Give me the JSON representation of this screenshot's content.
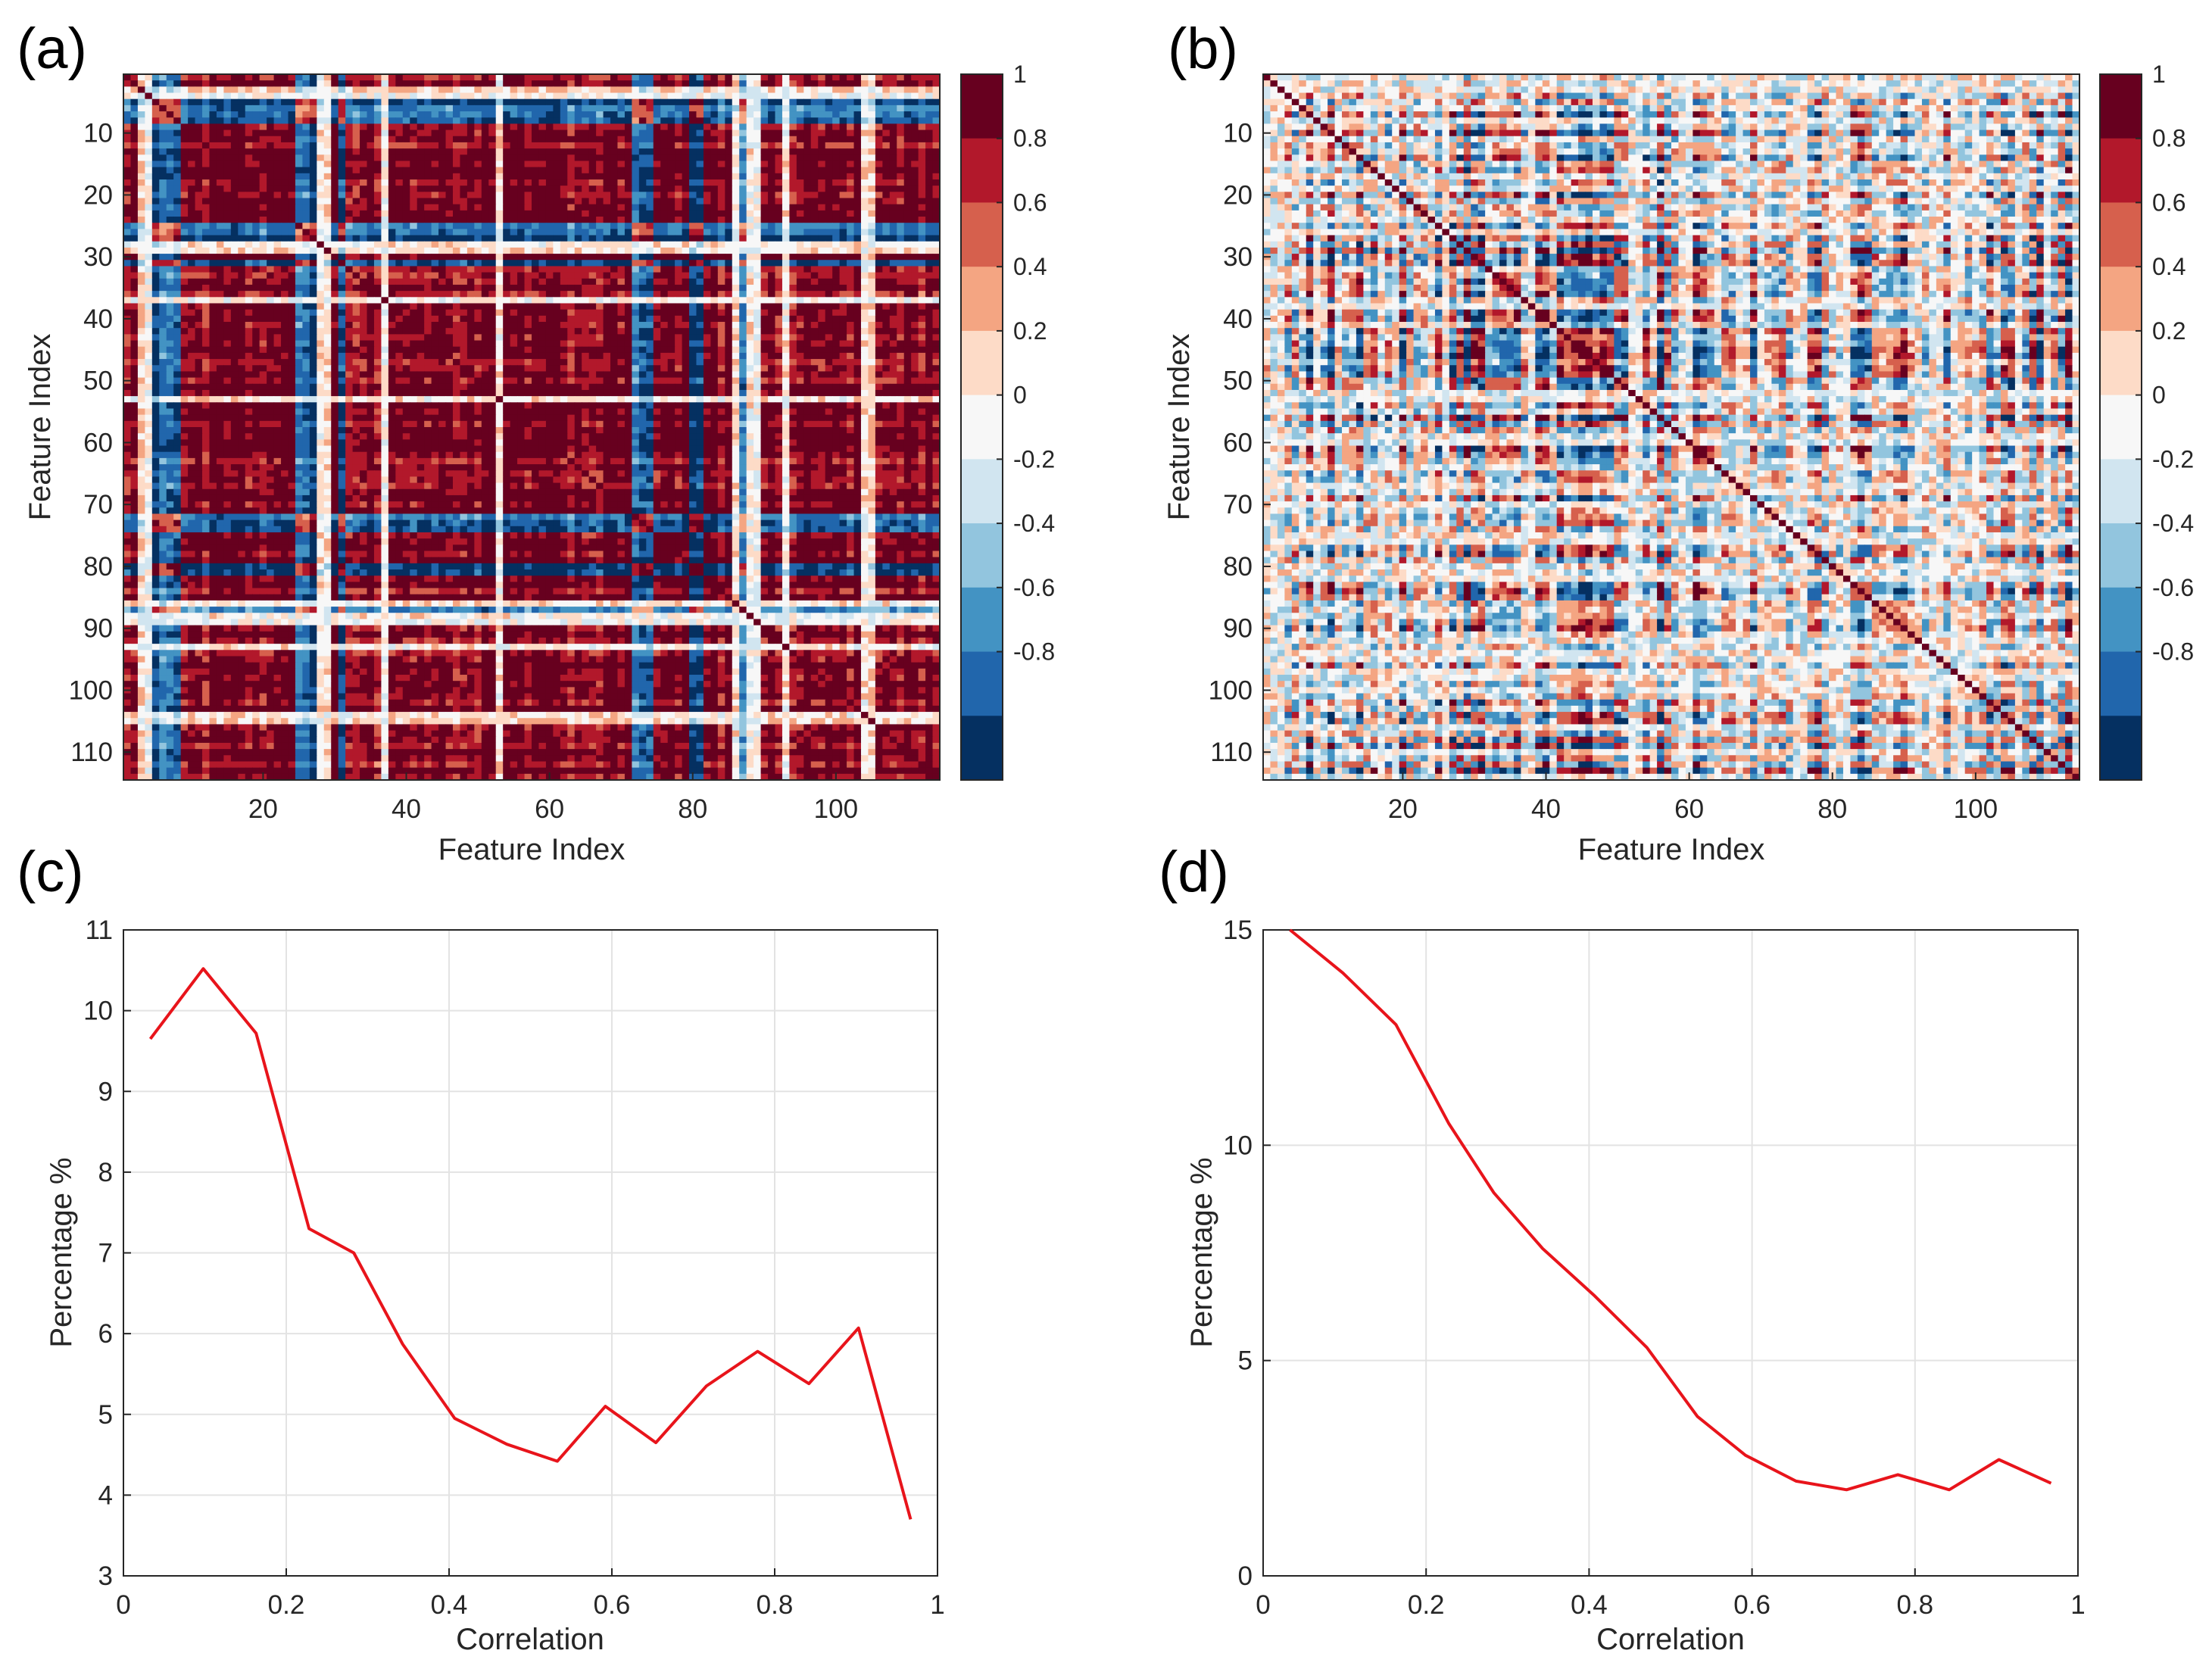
{
  "colors": {
    "line": "#e8141b",
    "grid": "#e3e3e3",
    "axis": "#262626",
    "colormap": [
      "#053061",
      "#2166ac",
      "#4393c3",
      "#92c5de",
      "#d1e5f0",
      "#f7f7f7",
      "#fddbc7",
      "#f4a582",
      "#d6604d",
      "#b2182b",
      "#67001f"
    ]
  },
  "chart_data": [
    {
      "id": "a",
      "panel_label": "(a)",
      "type": "heatmap",
      "title": "",
      "xlabel": "Feature Index",
      "ylabel": "Feature Index",
      "size": 114,
      "xticks": [
        "20",
        "40",
        "60",
        "80",
        "100"
      ],
      "yticks": [
        "10",
        "20",
        "30",
        "40",
        "50",
        "60",
        "70",
        "80",
        "90",
        "100",
        "110"
      ],
      "colorbar": {
        "range": [
          -1,
          1
        ],
        "ticks": [
          "1",
          "0.8",
          "0.6",
          "0.4",
          "0.2",
          "0",
          "-0.2",
          "-0.4",
          "-0.6",
          "-0.8"
        ]
      },
      "description_pattern": "strongly positively correlated features (mostly red) with blue bands near features 5-8, 24-26, 71-73, 80"
    },
    {
      "id": "b",
      "panel_label": "(b)",
      "type": "heatmap",
      "title": "",
      "xlabel": "Feature Index",
      "ylabel": "Feature Index",
      "size": 114,
      "xticks": [
        "20",
        "40",
        "60",
        "80",
        "100"
      ],
      "yticks": [
        "10",
        "20",
        "30",
        "40",
        "50",
        "60",
        "70",
        "80",
        "90",
        "100",
        "110"
      ],
      "colorbar": {
        "range": [
          -1,
          1
        ],
        "ticks": [
          "1",
          "0.8",
          "0.6",
          "0.4",
          "0.2",
          "0",
          "-0.2",
          "-0.4",
          "-0.6",
          "-0.8"
        ]
      },
      "description_pattern": "weakly correlated features (mixed light red/blue) with dark diagonal"
    },
    {
      "id": "c",
      "panel_label": "(c)",
      "type": "line",
      "title": "",
      "xlabel": "Correlation",
      "ylabel": "Percentage %",
      "xlim": [
        0,
        1
      ],
      "ylim": [
        3,
        11
      ],
      "xticks": [
        "0",
        "0.2",
        "0.4",
        "0.6",
        "0.8",
        "1"
      ],
      "yticks": [
        "3",
        "4",
        "5",
        "6",
        "7",
        "8",
        "9",
        "10",
        "11"
      ],
      "grid": true,
      "series": [
        {
          "name": "Percentage",
          "x": [
            0.033,
            0.098,
            0.163,
            0.228,
            0.283,
            0.343,
            0.407,
            0.471,
            0.533,
            0.592,
            0.654,
            0.716,
            0.779,
            0.842,
            0.903,
            0.967
          ],
          "y": [
            9.65,
            10.52,
            9.72,
            7.3,
            7.0,
            5.87,
            4.95,
            4.63,
            4.42,
            5.1,
            4.65,
            5.35,
            5.78,
            5.38,
            6.07,
            3.7
          ]
        }
      ]
    },
    {
      "id": "d",
      "panel_label": "(d)",
      "type": "line",
      "title": "",
      "xlabel": "Correlation",
      "ylabel": "Percentage %",
      "xlim": [
        0,
        1
      ],
      "ylim": [
        0,
        15
      ],
      "xticks": [
        "0",
        "0.2",
        "0.4",
        "0.6",
        "0.8",
        "1"
      ],
      "yticks": [
        "0",
        "5",
        "10",
        "15"
      ],
      "grid": true,
      "series": [
        {
          "name": "Percentage",
          "x": [
            0.033,
            0.098,
            0.163,
            0.228,
            0.283,
            0.343,
            0.407,
            0.471,
            0.533,
            0.592,
            0.654,
            0.716,
            0.779,
            0.842,
            0.903,
            0.967
          ],
          "y": [
            15.0,
            14.0,
            12.8,
            10.5,
            8.9,
            7.6,
            6.5,
            5.3,
            3.7,
            2.8,
            2.2,
            2.0,
            2.35,
            2.0,
            2.7,
            2.15
          ]
        }
      ]
    }
  ]
}
